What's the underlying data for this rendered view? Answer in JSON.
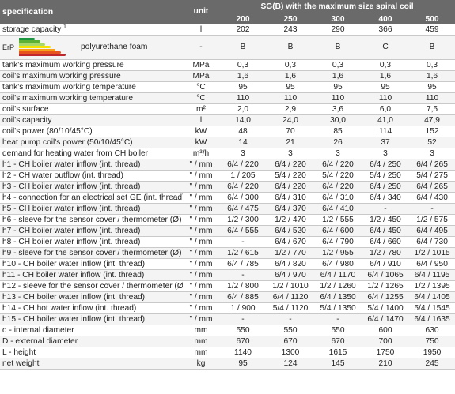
{
  "header": {
    "specification": "specification",
    "unit": "unit",
    "group_title": "SG(B) with the maximum size spiral coil",
    "models": [
      "200",
      "250",
      "300",
      "400",
      "500"
    ]
  },
  "erp": {
    "label": "ErP",
    "text": "polyurethane foam",
    "icon": "energy-class-bars-icon",
    "bar_colors": [
      "#1a9641",
      "#5bb035",
      "#a6d96a",
      "#f5e400",
      "#f7a11a",
      "#e8541e",
      "#c0272d"
    ],
    "values": [
      "B",
      "B",
      "B",
      "C",
      "B"
    ]
  },
  "rows": [
    {
      "name": "storage capacity",
      "sup": "1",
      "unit": "l",
      "values": [
        "202",
        "243",
        "290",
        "366",
        "459"
      ]
    },
    {
      "erp": true
    },
    {
      "name": "tank's maximum working pressure",
      "unit": "MPa",
      "values": [
        "0,3",
        "0,3",
        "0,3",
        "0,3",
        "0,3"
      ]
    },
    {
      "name": "coil's maximum working pressure",
      "unit": "MPa",
      "values": [
        "1,6",
        "1,6",
        "1,6",
        "1,6",
        "1,6"
      ]
    },
    {
      "name": "tank's maximum working temperature",
      "unit": "°C",
      "values": [
        "95",
        "95",
        "95",
        "95",
        "95"
      ]
    },
    {
      "name": "coil's maximum working temperature",
      "unit": "°C",
      "values": [
        "110",
        "110",
        "110",
        "110",
        "110"
      ]
    },
    {
      "name": "coil's surface",
      "unit": "m²",
      "values": [
        "2,0",
        "2,9",
        "3,6",
        "6,0",
        "7,5"
      ]
    },
    {
      "name": "coil's capacity",
      "unit": "l",
      "values": [
        "14,0",
        "24,0",
        "30,0",
        "41,0",
        "47,9"
      ]
    },
    {
      "name": "coil's power (80/10/45°C)",
      "unit": "kW",
      "values": [
        "48",
        "70",
        "85",
        "114",
        "152"
      ]
    },
    {
      "name": "heat pump coil's power (50/10/45°C)",
      "unit": "kW",
      "values": [
        "14",
        "21",
        "26",
        "37",
        "52"
      ]
    },
    {
      "name": "demand for heating water from CH boiler",
      "unit": "m³/h",
      "values": [
        "3",
        "3",
        "3",
        "3",
        "3"
      ]
    },
    {
      "name": "h1 - CH boiler water inflow (int. thread)",
      "unit": "\" / mm",
      "values": [
        "6/4 / 220",
        "6/4 / 220",
        "6/4 / 220",
        "6/4 / 250",
        "6/4 / 265"
      ]
    },
    {
      "name": "h2 - CH water outflow (int. thread)",
      "unit": "\" / mm",
      "values": [
        "1 / 205",
        "5/4 / 220",
        "5/4 / 220",
        "5/4 / 250",
        "5/4 / 275"
      ]
    },
    {
      "name": "h3 - CH boiler water inflow (int. thread)",
      "unit": "\" / mm",
      "values": [
        "6/4 / 220",
        "6/4 / 220",
        "6/4 / 220",
        "6/4 / 250",
        "6/4 / 265"
      ]
    },
    {
      "name": "h4 - connection for an electrical set GE (int. thread)",
      "unit": "\" / mm",
      "values": [
        "6/4 / 300",
        "6/4 / 310",
        "6/4 / 310",
        "6/4 / 340",
        "6/4 / 430"
      ]
    },
    {
      "name": "h5 - CH boiler water inflow (int. thread)",
      "unit": "\" / mm",
      "values": [
        "6/4 / 475",
        "6/4 / 370",
        "6/4 / 410",
        "-",
        "-"
      ]
    },
    {
      "name": "h6 - sleeve for the sensor cover / thermometer (Ø)",
      "unit": "\" / mm",
      "values": [
        "1/2 / 300",
        "1/2 / 470",
        "1/2 / 555",
        "1/2 / 450",
        "1/2 / 575"
      ]
    },
    {
      "name": "h7 - CH boiler water inflow (int. thread)",
      "unit": "\" / mm",
      "values": [
        "6/4 / 555",
        "6/4 / 520",
        "6/4 / 600",
        "6/4 / 450",
        "6/4 / 495"
      ]
    },
    {
      "name": "h8 - CH boiler water inflow (int. thread)",
      "unit": "\" / mm",
      "values": [
        "-",
        "6/4 / 670",
        "6/4 / 790",
        "6/4 / 660",
        "6/4 / 730"
      ]
    },
    {
      "name": "h9 - sleeve for the sensor cover / thermometer (Ø)",
      "unit": "\" / mm",
      "values": [
        "1/2 / 615",
        "1/2 / 770",
        "1/2 / 955",
        "1/2 / 780",
        "1/2 / 1015"
      ]
    },
    {
      "name": "h10 - CH boiler water inflow (int. thread)",
      "unit": "\" / mm",
      "values": [
        "6/4 / 785",
        "6/4 / 820",
        "6/4 / 980",
        "6/4 / 910",
        "6/4 / 950"
      ]
    },
    {
      "name": "h11 - CH boiler water inflow (int. thread)",
      "unit": "\" / mm",
      "values": [
        "-",
        "6/4 / 970",
        "6/4 / 1170",
        "6/4 / 1065",
        "6/4 / 1195"
      ]
    },
    {
      "name": "h12 - sleeve for the sensor cover / thermometer (Ø)",
      "unit": "\" / mm",
      "values": [
        "1/2 / 800",
        "1/2 / 1010",
        "1/2 / 1260",
        "1/2 / 1265",
        "1/2 / 1395"
      ]
    },
    {
      "name": "h13 - CH boiler water inflow (int. thread)",
      "unit": "\" / mm",
      "values": [
        "6/4 / 885",
        "6/4 / 1120",
        "6/4 / 1350",
        "6/4 / 1255",
        "6/4 / 1405"
      ]
    },
    {
      "name": "h14 - CH hot water inflow (int. thread)",
      "unit": "\" / mm",
      "values": [
        "1 / 900",
        "5/4 / 1120",
        "5/4 / 1350",
        "5/4 / 1400",
        "5/4 / 1545"
      ]
    },
    {
      "name": "h15 - CH boiler water inflow (int. thread)",
      "unit": "\" / mm",
      "values": [
        "-",
        "-",
        "-",
        "6/4 / 1470",
        "6/4 / 1635"
      ]
    },
    {
      "name": "d - internal diameter",
      "unit": "mm",
      "values": [
        "550",
        "550",
        "550",
        "600",
        "630"
      ]
    },
    {
      "name": "D - external diameter",
      "unit": "mm",
      "values": [
        "670",
        "670",
        "670",
        "700",
        "750"
      ]
    },
    {
      "name": "L - height",
      "unit": "mm",
      "values": [
        "1140",
        "1300",
        "1615",
        "1750",
        "1950"
      ]
    },
    {
      "name": "net weight",
      "unit": "kg",
      "values": [
        "95",
        "124",
        "145",
        "210",
        "245"
      ]
    }
  ]
}
